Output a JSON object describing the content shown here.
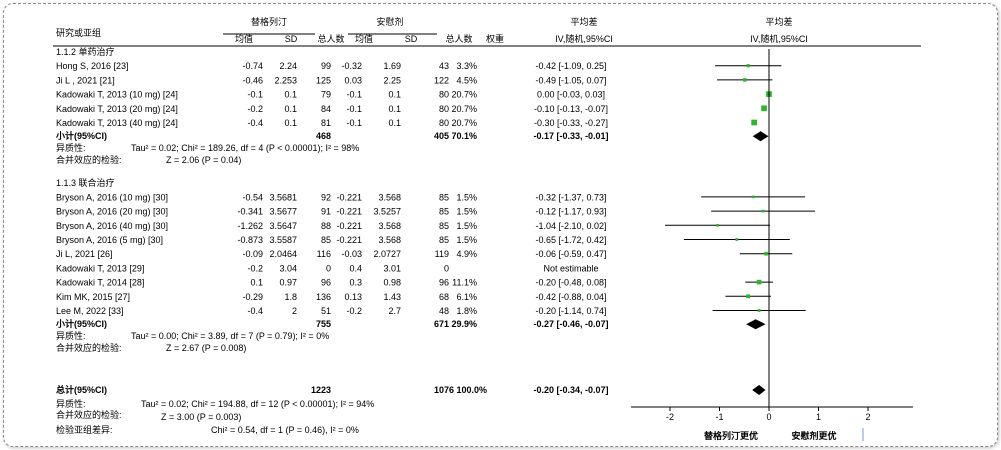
{
  "header": {
    "study_col": "研究或亚组",
    "exp_group": "替格列汀",
    "ctl_group": "安慰剂",
    "mean": "均值",
    "sd": "SD",
    "total": "总人数",
    "weight": "权重",
    "md_title": "平均差",
    "md_method": "IV,随机,95%CI"
  },
  "subgroups": [
    {
      "title": "1.1.2 单药治疗",
      "rows": [
        {
          "study": "Hong S,  2016 [23]",
          "m1": "-0.74",
          "sd1": "2.24",
          "n1": "99",
          "m2": "-0.32",
          "sd2": "1.69",
          "n2": "43",
          "w": "3.3%",
          "ci": "-0.42 [-1.09, 0.25]",
          "est": -0.42,
          "lo": -1.09,
          "hi": 0.25,
          "wt": 3.3
        },
        {
          "study": "Ji L , 2021 [21]",
          "m1": "-0.46",
          "sd1": "2.253",
          "n1": "125",
          "m2": "0.03",
          "sd2": "2.25",
          "n2": "122",
          "w": "4.5%",
          "ci": "-0.49 [-1.05, 0.07]",
          "est": -0.49,
          "lo": -1.05,
          "hi": 0.07,
          "wt": 4.5
        },
        {
          "study": "Kadowaki T, 2013 (10 mg) [24]",
          "m1": "-0.1",
          "sd1": "0.1",
          "n1": "79",
          "m2": "-0.1",
          "sd2": "0.1",
          "n2": "80",
          "w": "20.7%",
          "ci": "0.00 [-0.03, 0.03]",
          "est": 0.0,
          "lo": -0.03,
          "hi": 0.03,
          "wt": 20.7
        },
        {
          "study": "Kadowaki T, 2013 (20 mg) [24]",
          "m1": "-0.2",
          "sd1": "0.1",
          "n1": "84",
          "m2": "-0.1",
          "sd2": "0.1",
          "n2": "80",
          "w": "20.7%",
          "ci": "-0.10 [-0.13, -0.07]",
          "est": -0.1,
          "lo": -0.13,
          "hi": -0.07,
          "wt": 20.7
        },
        {
          "study": "Kadowaki T, 2013 (40 mg) [24]",
          "m1": "-0.4",
          "sd1": "0.1",
          "n1": "81",
          "m2": "-0.1",
          "sd2": "0.1",
          "n2": "80",
          "w": "20.7%",
          "ci": "-0.30 [-0.33, -0.27]",
          "est": -0.3,
          "lo": -0.33,
          "hi": -0.27,
          "wt": 20.7
        }
      ],
      "subtotal": {
        "label": "小计(95%CI)",
        "n1": "468",
        "n2": "405",
        "w": "70.1%",
        "ci": "-0.17 [-0.33, -0.01]",
        "est": -0.17,
        "lo": -0.33,
        "hi": -0.01
      },
      "het_label": "异质性:",
      "het_text": "Tau² = 0.02; Chi² = 189.26, df = 4 (P < 0.00001); I² = 98%",
      "eff_label": "合并效应的检验:",
      "eff_text": "Z = 2.06 (P = 0.04)"
    },
    {
      "title": "1.1.3 联合治疗",
      "rows": [
        {
          "study": "Bryson A, 2016 (10 mg) [30]",
          "m1": "-0.54",
          "sd1": "3.5681",
          "n1": "92",
          "m2": "-0.221",
          "sd2": "3.568",
          "n2": "85",
          "w": "1.5%",
          "ci": "-0.32 [-1.37, 0.73]",
          "est": -0.32,
          "lo": -1.37,
          "hi": 0.73,
          "wt": 1.5
        },
        {
          "study": "Bryson A, 2016 (20 mg) [30]",
          "m1": "-0.341",
          "sd1": "3.5677",
          "n1": "91",
          "m2": "-0.221",
          "sd2": "3.5257",
          "n2": "85",
          "w": "1.5%",
          "ci": "-0.12 [-1.17, 0.93]",
          "est": -0.12,
          "lo": -1.17,
          "hi": 0.93,
          "wt": 1.5
        },
        {
          "study": "Bryson A, 2016 (40 mg) [30]",
          "m1": "-1.262",
          "sd1": "3.5647",
          "n1": "88",
          "m2": "-0.221",
          "sd2": "3.568",
          "n2": "85",
          "w": "1.5%",
          "ci": "-1.04 [-2.10, 0.02]",
          "est": -1.04,
          "lo": -2.1,
          "hi": 0.02,
          "wt": 1.5
        },
        {
          "study": "Bryson A, 2016 (5 mg) [30]",
          "m1": "-0.873",
          "sd1": "3.5587",
          "n1": "85",
          "m2": "-0.221",
          "sd2": "3.568",
          "n2": "85",
          "w": "1.5%",
          "ci": "-0.65 [-1.72, 0.42]",
          "est": -0.65,
          "lo": -1.72,
          "hi": 0.42,
          "wt": 1.5
        },
        {
          "study": "Ji L, 2021 [26]",
          "m1": "-0.09",
          "sd1": "2.0464",
          "n1": "116",
          "m2": "-0.03",
          "sd2": "2.0727",
          "n2": "119",
          "w": "4.9%",
          "ci": "-0.06 [-0.59, 0.47]",
          "est": -0.06,
          "lo": -0.59,
          "hi": 0.47,
          "wt": 4.9
        },
        {
          "study": "Kadowaki T,  2013 [29]",
          "m1": "-0.2",
          "sd1": "3.04",
          "n1": "0",
          "m2": "0.4",
          "sd2": "3.01",
          "n2": "0",
          "w": "",
          "ci": "Not estimable",
          "est": null,
          "lo": null,
          "hi": null,
          "wt": 0
        },
        {
          "study": "Kadowaki T, 2014 [28]",
          "m1": "0.1",
          "sd1": "0.97",
          "n1": "96",
          "m2": "0.3",
          "sd2": "0.98",
          "n2": "96",
          "w": "11.1%",
          "ci": "-0.20 [-0.48, 0.08]",
          "est": -0.2,
          "lo": -0.48,
          "hi": 0.08,
          "wt": 11.1
        },
        {
          "study": "Kim MK, 2015 [27]",
          "m1": "-0.29",
          "sd1": "1.8",
          "n1": "136",
          "m2": "0.13",
          "sd2": "1.43",
          "n2": "68",
          "w": "6.1%",
          "ci": "-0.42 [-0.88, 0.04]",
          "est": -0.42,
          "lo": -0.88,
          "hi": 0.04,
          "wt": 6.1
        },
        {
          "study": "Lee M, 2022 [33]",
          "m1": "-0.4",
          "sd1": "2",
          "n1": "51",
          "m2": "-0.2",
          "sd2": "2.7",
          "n2": "48",
          "w": "1.8%",
          "ci": "-0.20 [-1.14, 0.74]",
          "est": -0.2,
          "lo": -1.14,
          "hi": 0.74,
          "wt": 1.8
        }
      ],
      "subtotal": {
        "label": "小计(95%CI)",
        "n1": "755",
        "n2": "671",
        "w": "29.9%",
        "ci": "-0.27 [-0.46, -0.07]",
        "est": -0.27,
        "lo": -0.46,
        "hi": -0.07
      },
      "het_label": "异质性:",
      "het_text": "Tau² = 0.00; Chi² = 3.89, df = 7 (P = 0.79); I² = 0%",
      "eff_label": "合并效应的检验:",
      "eff_text": "Z = 2.67 (P = 0.008)"
    }
  ],
  "total": {
    "label": "总计(95%CI)",
    "n1": "1223",
    "n2": "1076",
    "w": "100.0%",
    "ci": "-0.20 [-0.34, -0.07]",
    "est": -0.2,
    "lo": -0.34,
    "hi": -0.07,
    "het_label": "异质性:",
    "het_text": "Tau² = 0.02; Chi² = 194.88, df = 12 (P < 0.00001); I² = 94%",
    "eff_label": "合并效应的检验:",
    "eff_text": "Z = 3.00 (P = 0.003)",
    "sub_label": "检验亚组差异:",
    "sub_text": "Chi² = 0.54, df = 1 (P = 0.46), I² = 0%"
  },
  "axis": {
    "ticks": [
      "-2",
      "-1",
      "0",
      "1",
      "2"
    ],
    "favours_left": "替格列汀更优",
    "favours_right": "安慰剂更优"
  },
  "chart_data": {
    "type": "forest",
    "xlim": [
      -2,
      2
    ],
    "xticks": [
      -2,
      -1,
      0,
      1,
      2
    ],
    "colors": {
      "study_marker": "#2db52d",
      "diamond": "#000000",
      "ci_line": "#000000"
    }
  }
}
